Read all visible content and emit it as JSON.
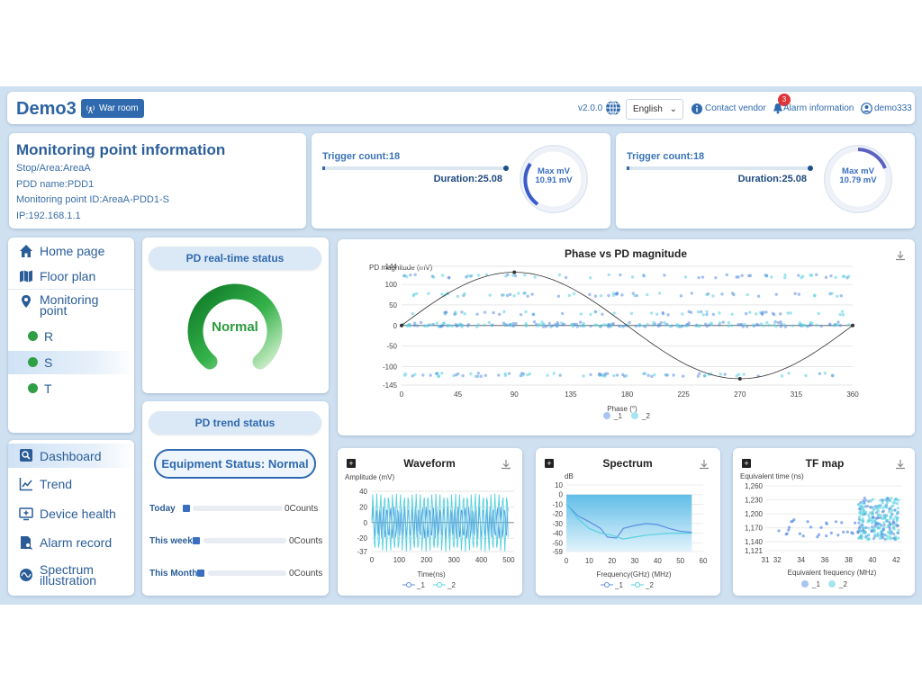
{
  "header": {
    "brand": "Demo3",
    "war_room": "War room",
    "version": "v2.0.0",
    "language": "English",
    "contact_vendor": "Contact vendor",
    "alarm_info": "Alarm information",
    "alarm_badge": "3",
    "user": "demo333"
  },
  "info": {
    "title": "Monitoring point information",
    "stop_area": "Stop/Area:AreaA",
    "pdd_name": "PDD name:PDD1",
    "mp_id": "Monitoring point ID:AreaA-PDD1-S",
    "ip": "IP:192.168.1.1"
  },
  "trigger_cards": [
    {
      "trigger": "Trigger count:18",
      "duration": "Duration:25.08",
      "max_label": "Max mV",
      "max_value": "10.91 mV",
      "ring_level": 0.3
    },
    {
      "trigger": "Trigger count:18",
      "duration": "Duration:25.08",
      "max_label": "Max mV",
      "max_value": "10.79 mV",
      "ring_level": 0.3
    }
  ],
  "nav": {
    "home": "Home page",
    "floor": "Floor plan",
    "monitoring": "Monitoring point",
    "points": [
      "R",
      "S",
      "T"
    ],
    "active_point": "S"
  },
  "nav2": {
    "dashboard": "Dashboard",
    "trend": "Trend",
    "device_health": "Device health",
    "alarm_record": "Alarm record",
    "spectrum": "Spectrum illustration"
  },
  "pd_realtime": {
    "title": "PD real-time status",
    "status": "Normal",
    "accent": "#2a9a3c"
  },
  "pd_trend": {
    "title": "PD trend status",
    "equipment": "Equipment Status: Normal",
    "rows": [
      {
        "label": "Today",
        "count": "0Counts"
      },
      {
        "label": "This week",
        "count": "0Counts"
      },
      {
        "label": "This Month",
        "count": "0Counts"
      }
    ]
  },
  "colors": {
    "series1": "#5b8fe0",
    "series2": "#55d0e0",
    "accent": "#2f6aae"
  },
  "chart_data": [
    {
      "type": "scatter",
      "title": "Phase vs PD magnitude",
      "xlabel": "Phase (°)",
      "ylabel": "PD magnitude (mV)",
      "xlim": [
        0,
        360
      ],
      "ylim": [
        -145,
        144
      ],
      "xticks": [
        "0",
        "45",
        "90",
        "135",
        "180",
        "225",
        "270",
        "315",
        "360"
      ],
      "yticks": [
        "144",
        "100",
        "50",
        "0",
        "-50",
        "-100",
        "-145"
      ],
      "series": [
        {
          "name": "_1"
        },
        {
          "name": "_2"
        }
      ],
      "reference_sine": {
        "amplitude": 144,
        "period": 360
      },
      "bands": [
        -120,
        0,
        5,
        30,
        75,
        120
      ]
    },
    {
      "type": "line",
      "title": "Waveform",
      "xlabel": "Time(ns)",
      "ylabel": "Amplitude (mV)",
      "xlim": [
        0,
        520
      ],
      "ylim": [
        -37,
        40
      ],
      "xticks": [
        "0",
        "100",
        "200",
        "300",
        "400",
        "500"
      ],
      "yticks": [
        "40",
        "20",
        "0",
        "-20",
        "-37"
      ],
      "series": [
        {
          "name": "_1",
          "amplitude": 20
        },
        {
          "name": "_2",
          "amplitude": 37
        }
      ]
    },
    {
      "type": "area",
      "title": "Spectrum",
      "xlabel": "Frequency(GHz) (MHz)",
      "ylabel": "dB",
      "xlim": [
        0,
        60
      ],
      "ylim": [
        -59,
        10
      ],
      "xticks": [
        "0",
        "10",
        "20",
        "30",
        "40",
        "50",
        "60"
      ],
      "yticks": [
        "10",
        "0",
        "-10",
        "-20",
        "-30",
        "-40",
        "-50",
        "-59"
      ],
      "series": [
        {
          "name": "_1",
          "x": [
            0,
            5,
            10,
            15,
            18,
            22,
            25,
            30,
            35,
            40,
            45,
            50,
            55
          ],
          "y": [
            -10,
            -22,
            -28,
            -35,
            -44,
            -45,
            -35,
            -32,
            -30,
            -31,
            -35,
            -38,
            -39
          ]
        },
        {
          "name": "_2",
          "x": [
            0,
            5,
            10,
            15,
            20,
            25,
            30,
            35,
            40,
            45,
            50,
            55
          ],
          "y": [
            -10,
            -25,
            -35,
            -40,
            -42,
            -46,
            -44,
            -42,
            -41,
            -40,
            -40,
            -40
          ]
        }
      ]
    },
    {
      "type": "scatter",
      "title": "TF map",
      "xlabel": "Equivalent frequency (MHz)",
      "ylabel": "Equivalent time (ns)",
      "xlim": [
        31,
        42.5
      ],
      "ylim": [
        1121,
        1260
      ],
      "xticks": [
        "31",
        "32",
        "34",
        "36",
        "38",
        "40",
        "42"
      ],
      "yticks": [
        "1,260",
        "1,230",
        "1,200",
        "1,170",
        "1,140",
        "1,121"
      ],
      "series": [
        {
          "name": "_1"
        },
        {
          "name": "_2"
        }
      ]
    }
  ]
}
